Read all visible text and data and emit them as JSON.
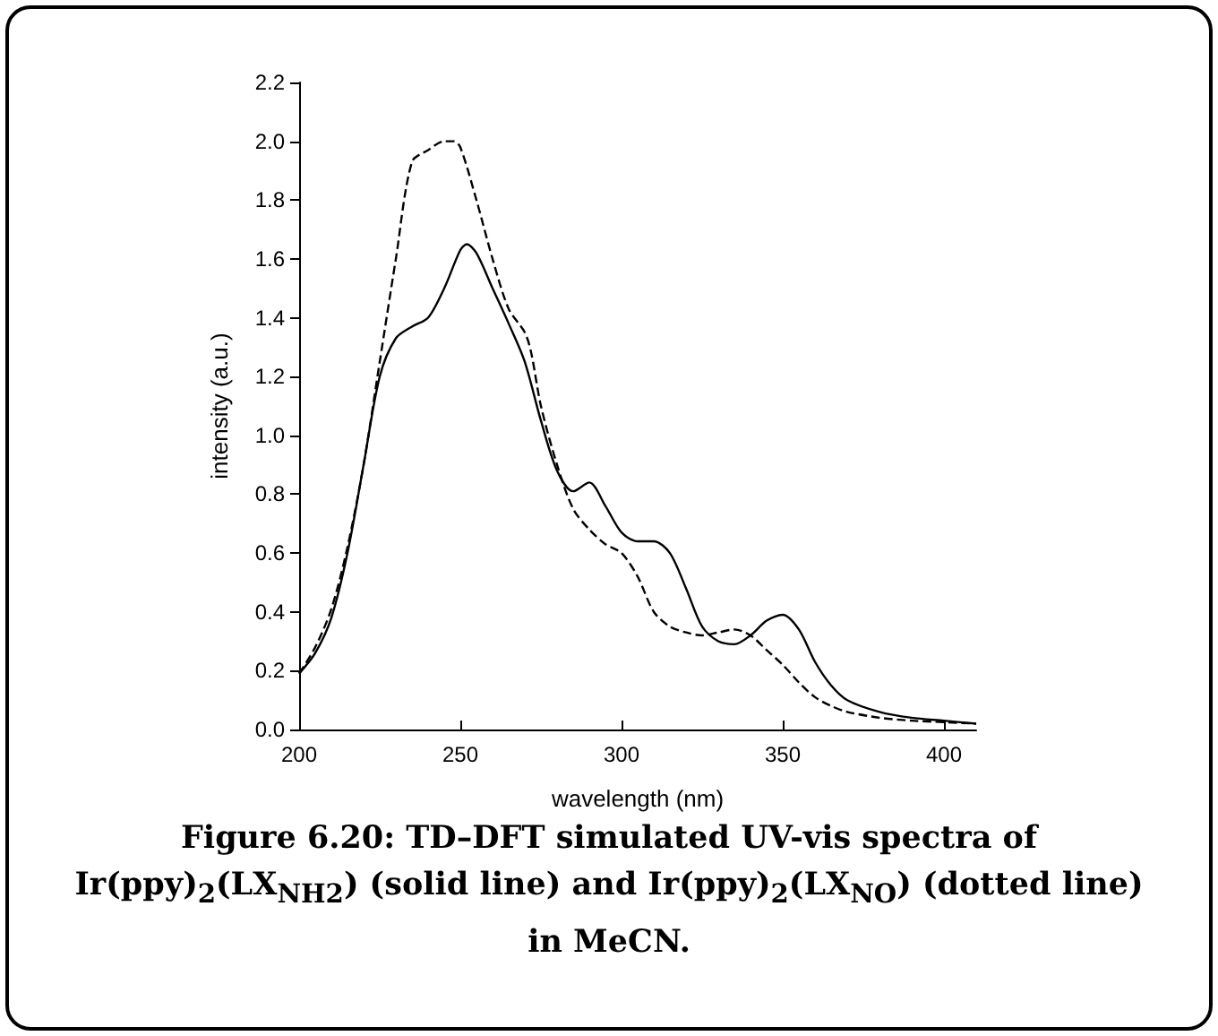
{
  "chart_data": {
    "type": "line",
    "title": "Figure 6.20: TD–DFT simulated UV-vis spectra of Ir(ppy)$_{2}$(LX$_{NH2}$) (solid line) and Ir(ppy)$_{2}$(LX$_{NO}$) (dotted line) in MeCN.",
    "xlabel": "wavelength (nm)",
    "ylabel": "intensity (a.u.)",
    "xlim": [
      200,
      410
    ],
    "xticks": [
      200,
      250,
      300,
      350,
      400
    ],
    "ylim": [
      0,
      2.2
    ],
    "yticks": [
      {
        "value": 0,
        "label": "0.0"
      },
      {
        "value": 0.2,
        "label": "0.2"
      },
      {
        "value": 0.4,
        "label": "0.4"
      },
      {
        "value": 0.6,
        "label": "0.6"
      },
      {
        "value": 0.8,
        "label": "0.8"
      },
      {
        "value": 1,
        "label": "1.0"
      },
      {
        "value": 1.2,
        "label": "1.2"
      },
      {
        "value": 1.4,
        "label": "1.4"
      },
      {
        "value": 1.6,
        "label": "1.6"
      },
      {
        "value": 1.8,
        "label": "1.8"
      },
      {
        "value": 2,
        "label": "2.0"
      },
      {
        "value": 2.2,
        "label": "2.2"
      }
    ],
    "grid": false,
    "marker": "none",
    "series": [
      {
        "color": "#000000",
        "line_style": "solid",
        "x": [
          200,
          205,
          210,
          215,
          220,
          225,
          230,
          235,
          240,
          245,
          250,
          252,
          255,
          260,
          265,
          270,
          275,
          280,
          285,
          290,
          295,
          300,
          305,
          310,
          315,
          320,
          325,
          330,
          335,
          340,
          345,
          350,
          355,
          360,
          365,
          370,
          380,
          390,
          400,
          410
        ],
        "values": [
          0.19,
          0.26,
          0.38,
          0.6,
          0.9,
          1.2,
          1.33,
          1.37,
          1.4,
          1.5,
          1.63,
          1.65,
          1.62,
          1.5,
          1.38,
          1.25,
          1.05,
          0.88,
          0.81,
          0.84,
          0.76,
          0.67,
          0.64,
          0.64,
          0.6,
          0.48,
          0.35,
          0.3,
          0.29,
          0.32,
          0.37,
          0.39,
          0.34,
          0.23,
          0.15,
          0.1,
          0.06,
          0.04,
          0.03,
          0.02
        ]
      },
      {
        "color": "#000000",
        "line_style": "dashed",
        "x": [
          200,
          205,
          210,
          215,
          220,
          225,
          230,
          235,
          240,
          245,
          248,
          250,
          255,
          260,
          265,
          270,
          272,
          275,
          280,
          285,
          290,
          295,
          300,
          305,
          310,
          315,
          320,
          325,
          330,
          335,
          340,
          345,
          350,
          355,
          360,
          365,
          370,
          380,
          390,
          400,
          410
        ],
        "values": [
          0.19,
          0.28,
          0.41,
          0.62,
          0.9,
          1.25,
          1.6,
          1.93,
          1.97,
          2.0,
          2.0,
          1.98,
          1.8,
          1.6,
          1.43,
          1.35,
          1.28,
          1.1,
          0.9,
          0.75,
          0.68,
          0.63,
          0.6,
          0.52,
          0.4,
          0.35,
          0.33,
          0.32,
          0.33,
          0.34,
          0.32,
          0.27,
          0.22,
          0.16,
          0.11,
          0.08,
          0.06,
          0.04,
          0.03,
          0.025,
          0.02
        ]
      }
    ]
  }
}
